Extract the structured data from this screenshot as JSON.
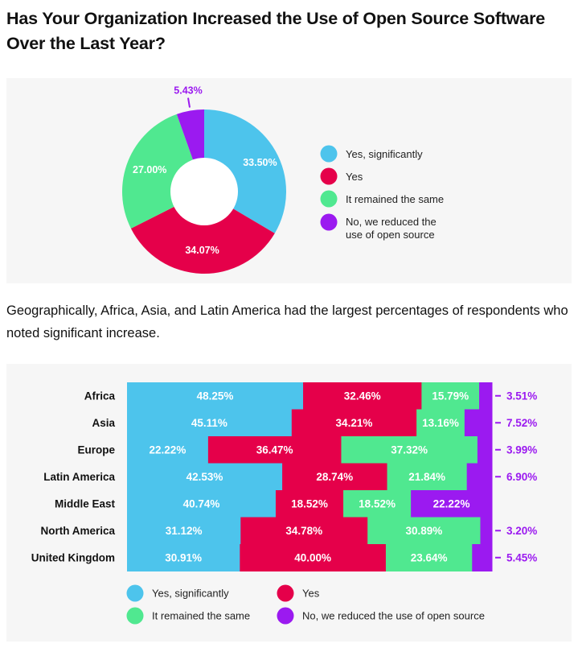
{
  "title": "Has Your Organization Increased the Use of Open Source Software Over the Last Year?",
  "note": "Geographically, Africa, Asia, and Latin America had the largest percentages of respondents who noted significant increase.",
  "colors": {
    "yes_significantly": "#4dc4ec",
    "yes": "#e5004a",
    "same": "#50e890",
    "no": "#9b1af0"
  },
  "chart_data": [
    {
      "type": "pie",
      "donut": true,
      "categories": [
        "Yes, significantly",
        "Yes",
        "It remained the same",
        "No, we reduced the use of open source"
      ],
      "legend_labels": [
        "Yes, significantly",
        "Yes",
        "It remained the same",
        "No, we reduced the",
        "use of open source"
      ],
      "values": [
        33.5,
        34.07,
        27.0,
        5.43
      ],
      "labels": [
        "33.50%",
        "34.07%",
        "27.00%",
        "5.43%"
      ],
      "legend": "right"
    },
    {
      "type": "bar",
      "stacked": true,
      "orientation": "horizontal",
      "categories": [
        "Africa",
        "Asia",
        "Europe",
        "Latin America",
        "Middle East",
        "North America",
        "United Kingdom"
      ],
      "series": [
        {
          "name": "Yes, significantly",
          "values": [
            48.25,
            45.11,
            22.22,
            42.53,
            40.74,
            31.12,
            30.91
          ]
        },
        {
          "name": "Yes",
          "values": [
            32.46,
            34.21,
            36.47,
            28.74,
            18.52,
            34.78,
            40.0
          ]
        },
        {
          "name": "It remained the same",
          "values": [
            15.79,
            13.16,
            37.32,
            21.84,
            18.52,
            30.89,
            23.64
          ]
        },
        {
          "name": "No, we reduced the use of open source",
          "values": [
            3.51,
            7.52,
            3.99,
            6.9,
            22.22,
            3.2,
            5.45
          ]
        }
      ],
      "labels": [
        [
          "48.25%",
          "32.46%",
          "15.79%",
          "3.51%"
        ],
        [
          "45.11%",
          "34.21%",
          "13.16%",
          "7.52%"
        ],
        [
          "22.22%",
          "36.47%",
          "37.32%",
          "3.99%"
        ],
        [
          "42.53%",
          "28.74%",
          "21.84%",
          "6.90%"
        ],
        [
          "40.74%",
          "18.52%",
          "18.52%",
          "22.22%"
        ],
        [
          "31.12%",
          "34.78%",
          "30.89%",
          "3.20%"
        ],
        [
          "30.91%",
          "40.00%",
          "23.64%",
          "5.45%"
        ]
      ],
      "xlim": [
        0,
        100
      ],
      "legend": "bottom"
    }
  ]
}
